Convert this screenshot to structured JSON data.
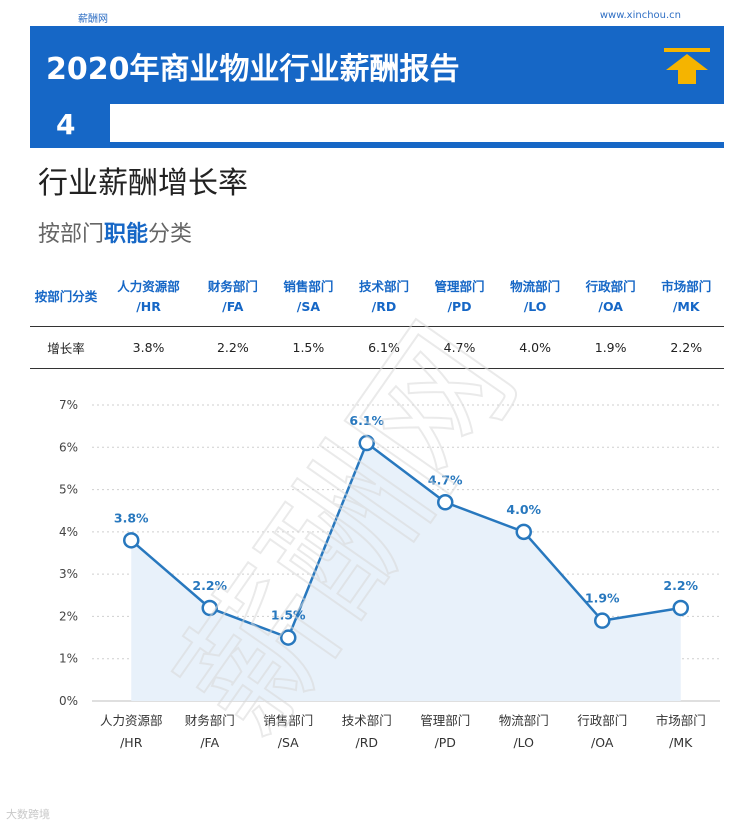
{
  "header": {
    "site_name": "薪酬网",
    "site_url": "www.xinchou.cn",
    "report_title": "2020年商业物业行业薪酬报告",
    "section_number": "4",
    "arrow_color": "#f5b400",
    "brand_color": "#1667c6"
  },
  "section": {
    "title_part1": "行业薪酬",
    "title_part2": "增长率",
    "subtitle_part1": "按部门",
    "subtitle_part2": "职能",
    "subtitle_part3": "分类"
  },
  "table": {
    "row_header": "按部门分类",
    "columns": [
      {
        "name": "人力资源部",
        "code": "/HR"
      },
      {
        "name": "财务部门",
        "code": "/FA"
      },
      {
        "name": "销售部门",
        "code": "/SA"
      },
      {
        "name": "技术部门",
        "code": "/RD"
      },
      {
        "name": "管理部门",
        "code": "/PD"
      },
      {
        "name": "物流部门",
        "code": "/LO"
      },
      {
        "name": "行政部门",
        "code": "/OA"
      },
      {
        "name": "市场部门",
        "code": "/MK"
      }
    ],
    "row_label": "增长率",
    "values": [
      "3.8%",
      "2.2%",
      "1.5%",
      "6.1%",
      "4.7%",
      "4.0%",
      "1.9%",
      "2.2%"
    ]
  },
  "chart_data": {
    "type": "line",
    "categories": [
      "人力资源部/HR",
      "财务部门/FA",
      "销售部门/SA",
      "技术部门/RD",
      "管理部门/PD",
      "物流部门/LO",
      "行政部门/OA",
      "市场部门/MK"
    ],
    "category_lines": [
      [
        "人力资源部",
        "/HR"
      ],
      [
        "财务部门",
        "/FA"
      ],
      [
        "销售部门",
        "/SA"
      ],
      [
        "技术部门",
        "/RD"
      ],
      [
        "管理部门",
        "/PD"
      ],
      [
        "物流部门",
        "/LO"
      ],
      [
        "行政部门",
        "/OA"
      ],
      [
        "市场部门",
        "/MK"
      ]
    ],
    "values": [
      3.8,
      2.2,
      1.5,
      6.1,
      4.7,
      4.0,
      1.9,
      2.2
    ],
    "data_labels": [
      "3.8%",
      "2.2%",
      "1.5%",
      "6.1%",
      "4.7%",
      "4.0%",
      "1.9%",
      "2.2%"
    ],
    "ylim": [
      0,
      7
    ],
    "yticks": [
      "0%",
      "1%",
      "2%",
      "3%",
      "4%",
      "5%",
      "6%",
      "7%"
    ],
    "title": "",
    "xlabel": "",
    "ylabel": "",
    "grid": true,
    "line_color": "#2878be",
    "fill_color": "#e8f1fa"
  },
  "watermark": "薪酬网",
  "footer": "大数跨境"
}
